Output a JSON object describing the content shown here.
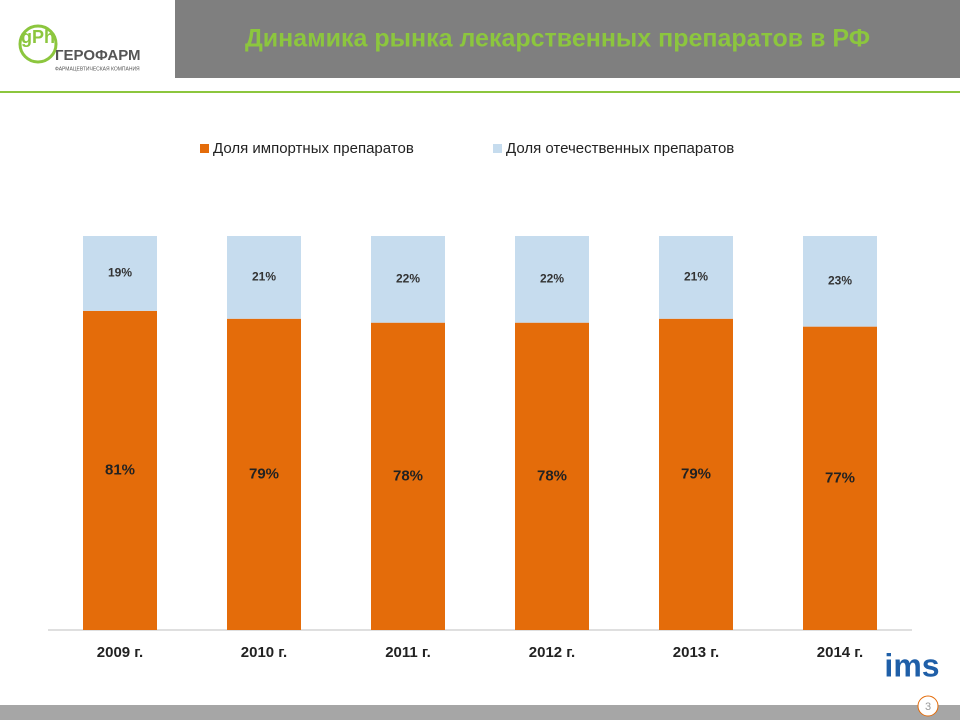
{
  "header": {
    "logo_name": "ГЕРОФАРМ",
    "logo_subtitle": "ФАРМАЦЕВТИЧЕСКАЯ КОМПАНИЯ",
    "logo_letters": "gPh"
  },
  "footer": {
    "brand": "ims",
    "slide_number": "3"
  },
  "chart_data": {
    "type": "bar",
    "stacked": true,
    "title": "Динамика рынка лекарственных препаратов в РФ",
    "categories": [
      "2009 г.",
      "2010 г.",
      "2011 г.",
      "2012 г.",
      "2013 г.",
      "2014 г."
    ],
    "series": [
      {
        "name": "Доля импортных препаратов",
        "color": "#e46c0a",
        "values": [
          81,
          79,
          78,
          78,
          79,
          77
        ],
        "value_labels": [
          "81%",
          "79%",
          "78%",
          "78%",
          "79%",
          "77%"
        ]
      },
      {
        "name": "Доля отечественных препаратов",
        "color": "#c6dcee",
        "values": [
          19,
          21,
          22,
          22,
          21,
          23
        ],
        "value_labels": [
          "19%",
          "21%",
          "22%",
          "22%",
          "21%",
          "23%"
        ]
      }
    ],
    "ylim": [
      0,
      100
    ]
  }
}
